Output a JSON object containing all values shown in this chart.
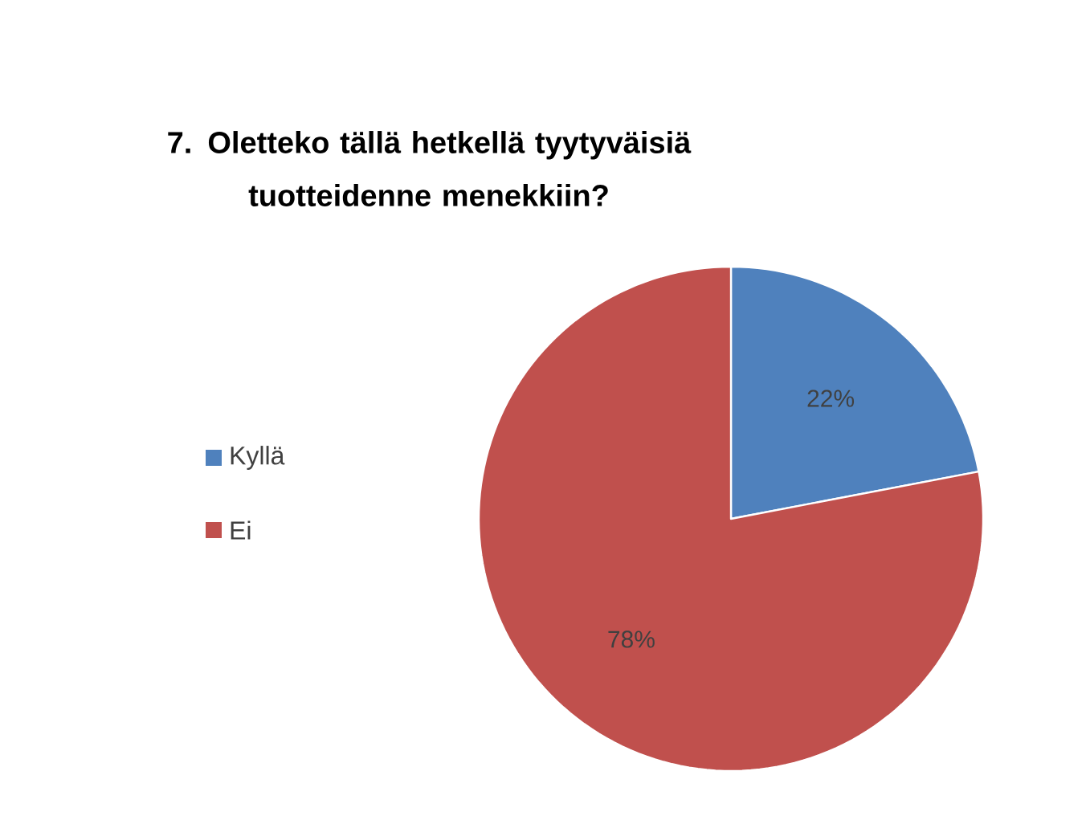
{
  "chart_data": {
    "type": "pie",
    "title": "7. Oletteko tällä hetkellä tyytyväisiä tuotteidenne menekkiin?",
    "categories": [
      "Kyllä",
      "Ei"
    ],
    "values": [
      22,
      78
    ],
    "value_labels": [
      "22%",
      "78%"
    ],
    "colors": [
      "#4f81bd",
      "#c0504d"
    ],
    "legend": "left"
  }
}
